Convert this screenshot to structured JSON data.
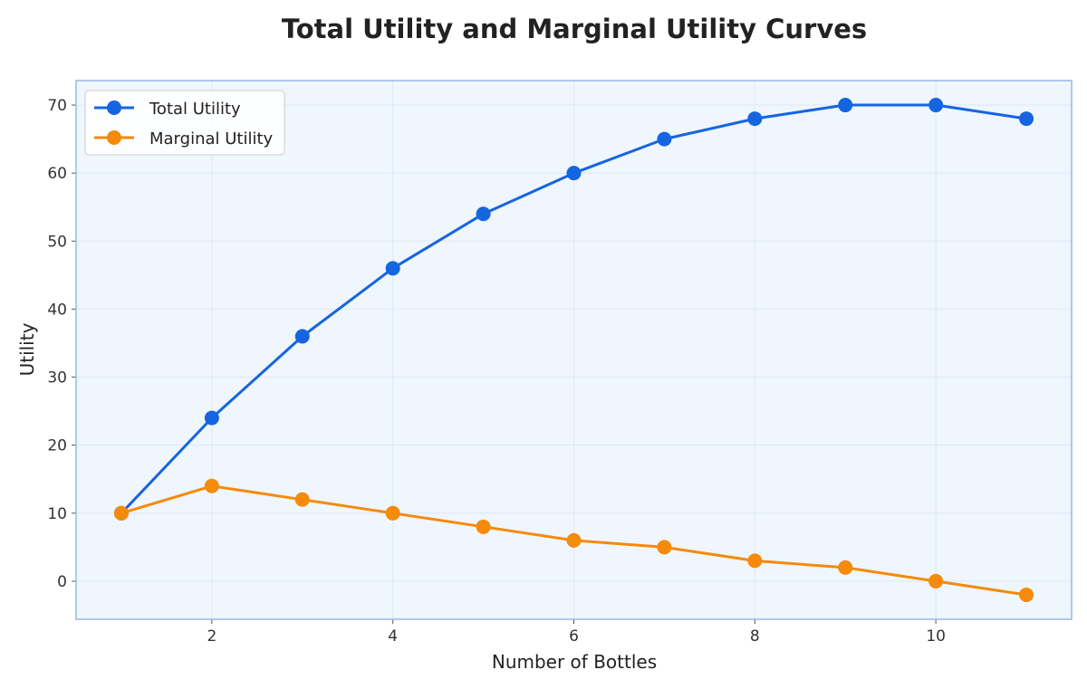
{
  "chart_data": {
    "type": "line",
    "title": "Total Utility and Marginal Utility Curves",
    "xlabel": "Number of Bottles",
    "ylabel": "Utility",
    "x": [
      1,
      2,
      3,
      4,
      5,
      6,
      7,
      8,
      9,
      10,
      11
    ],
    "xlim": [
      0.5,
      11.5
    ],
    "ylim": [
      -5.6,
      73.6
    ],
    "xticks": [
      2,
      4,
      6,
      8,
      10
    ],
    "yticks": [
      0,
      10,
      20,
      30,
      40,
      50,
      60,
      70
    ],
    "grid": true,
    "legend_position": "top-left",
    "series": [
      {
        "name": "Total Utility",
        "color": "#1565e0",
        "values": [
          10,
          24,
          36,
          46,
          54,
          60,
          65,
          68,
          70,
          70,
          68
        ]
      },
      {
        "name": "Marginal Utility",
        "color": "#f58a0b",
        "values": [
          10,
          14,
          12,
          10,
          8,
          6,
          5,
          3,
          2,
          0,
          -2
        ]
      }
    ],
    "plot_background": "#f0f6fd",
    "frame_color": "#9bbde8",
    "grid_color": "#dde8f6"
  }
}
